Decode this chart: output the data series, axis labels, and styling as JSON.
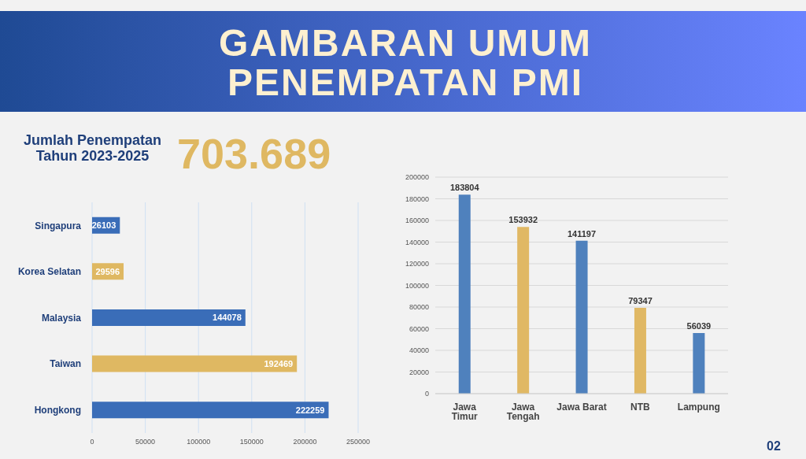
{
  "chart_data": [
    {
      "type": "bar",
      "title": "GAMBARAN UMUM PENEMPATAN PMI",
      "subtitle": "Jumlah Penempatan Tahun 2023-2025",
      "annotations": [
        "703.689"
      ],
      "orientation": "horizontal",
      "categories": [
        "Singapura",
        "Korea Selatan",
        "Malaysia",
        "Taiwan",
        "Hongkong"
      ],
      "values": [
        26103,
        29596,
        144078,
        192469,
        222259
      ],
      "colors": [
        "#3a6db8",
        "#dfb862",
        "#3a6db8",
        "#dfb862",
        "#3a6db8"
      ],
      "xlim": [
        0,
        250000
      ],
      "xticks": [
        0,
        50000,
        100000,
        150000,
        200000,
        250000
      ],
      "grid": "x",
      "data_labels": true
    },
    {
      "type": "bar",
      "annotations": [
        "02"
      ],
      "categories": [
        "Jawa Timur",
        "Jawa Tengah",
        "Jawa Barat",
        "NTB",
        "Lampung"
      ],
      "values": [
        183804,
        153932,
        141197,
        79347,
        56039
      ],
      "colors": [
        "#4f81bd",
        "#e0b864",
        "#4f81bd",
        "#e0b864",
        "#4f81bd"
      ],
      "ylim": [
        0,
        200000
      ],
      "yticks": [
        0,
        20000,
        40000,
        60000,
        80000,
        100000,
        120000,
        140000,
        160000,
        180000,
        200000
      ],
      "grid": "y",
      "data_labels": true
    }
  ]
}
